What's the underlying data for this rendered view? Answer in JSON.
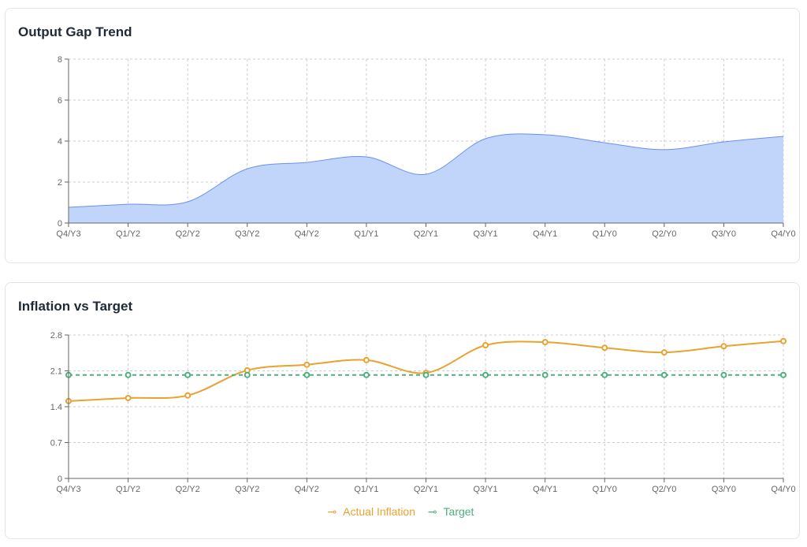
{
  "chart_data": [
    {
      "type": "area",
      "title": "Output Gap Trend",
      "categories": [
        "Q4/Y3",
        "Q1/Y2",
        "Q2/Y2",
        "Q3/Y2",
        "Q4/Y2",
        "Q1/Y1",
        "Q2/Y1",
        "Q3/Y1",
        "Q4/Y1",
        "Q1/Y0",
        "Q2/Y0",
        "Q3/Y0",
        "Q4/Y0"
      ],
      "series": [
        {
          "name": "Output Gap",
          "values": [
            0.77,
            0.92,
            1.04,
            2.65,
            2.96,
            3.23,
            2.38,
            4.12,
            4.31,
            3.92,
            3.58,
            3.96,
            4.23
          ],
          "color": "#6b8ff0",
          "fill": "#c1d5fb"
        }
      ],
      "ylim": [
        0,
        8
      ],
      "yticks": [
        "0",
        "2",
        "4",
        "6",
        "8"
      ],
      "grid": true
    },
    {
      "type": "line",
      "title": "Inflation vs Target",
      "categories": [
        "Q4/Y3",
        "Q1/Y2",
        "Q2/Y2",
        "Q3/Y2",
        "Q4/Y2",
        "Q1/Y1",
        "Q2/Y1",
        "Q3/Y1",
        "Q4/Y1",
        "Q1/Y0",
        "Q2/Y0",
        "Q3/Y0",
        "Q4/Y0"
      ],
      "series": [
        {
          "name": "Actual Inflation",
          "values": [
            1.51,
            1.57,
            1.62,
            2.11,
            2.22,
            2.31,
            2.06,
            2.6,
            2.66,
            2.55,
            2.46,
            2.58,
            2.68
          ],
          "color": "#e9a22f"
        },
        {
          "name": "Target",
          "values": [
            2.02,
            2.02,
            2.02,
            2.02,
            2.02,
            2.02,
            2.02,
            2.02,
            2.02,
            2.02,
            2.02,
            2.02,
            2.02
          ],
          "color": "#4caf7d",
          "dashed": true
        }
      ],
      "ylim": [
        0,
        2.8
      ],
      "yticks": [
        "0",
        "0.7",
        "1.4",
        "2.1",
        "2.8"
      ],
      "grid": true,
      "legend": "bottom"
    }
  ]
}
